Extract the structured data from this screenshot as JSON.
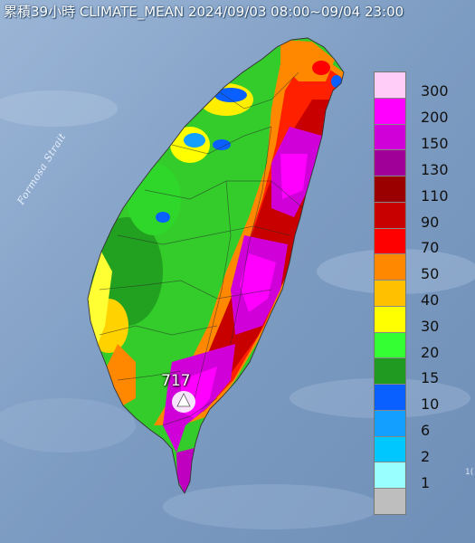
{
  "title": "累積39小時 CLIMATE_MEAN 2024/09/03 08:00~09/04 23:00",
  "sea_label": "Formosa Strait",
  "max_value_label": "717",
  "edge_fragment": "1(",
  "legend": {
    "labels": [
      "300",
      "200",
      "150",
      "130",
      "110",
      "90",
      "70",
      "50",
      "40",
      "30",
      "20",
      "15",
      "10",
      "6",
      "2",
      "1"
    ],
    "colors": [
      "#ffcdf8",
      "#ff00ff",
      "#d000d8",
      "#a00098",
      "#9b0000",
      "#c80000",
      "#ff0000",
      "#ff8800",
      "#ffc000",
      "#ffff00",
      "#33ff33",
      "#209a20",
      "#0a60ff",
      "#129fff",
      "#00c8ff",
      "#99ffff",
      "#bebebe"
    ]
  },
  "colors": {
    "sea": "#8aa6c9",
    "land_base": "#3aa830",
    "max_marker": "#f8e4ff"
  }
}
